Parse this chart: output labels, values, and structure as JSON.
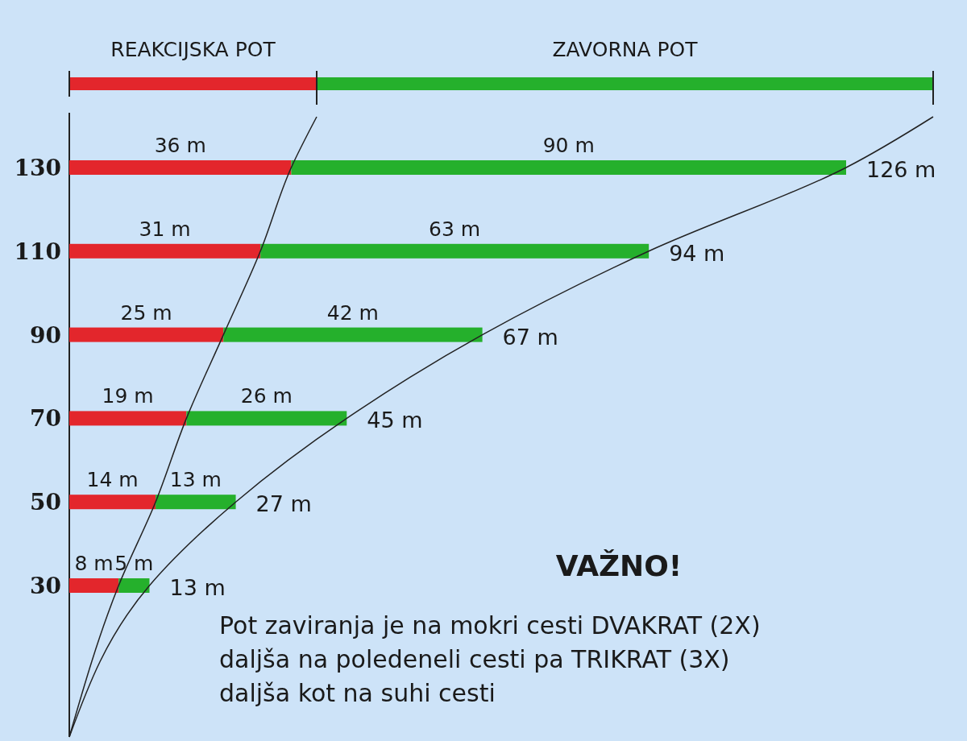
{
  "chart_data": {
    "type": "bar",
    "orientation": "horizontal",
    "stacked": true,
    "legend": "top",
    "categories": [
      "130",
      "110",
      "90",
      "70",
      "50",
      "30"
    ],
    "series": [
      {
        "name": "REAKCIJSKA POT",
        "color": "#e3262c",
        "values": [
          36,
          31,
          25,
          19,
          14,
          8
        ],
        "value_labels": [
          "36 m",
          "31 m",
          "25 m",
          "19 m",
          "14 m",
          "8 m"
        ]
      },
      {
        "name": "ZAVORNA POT",
        "color": "#25b02c",
        "values": [
          90,
          63,
          42,
          26,
          13,
          5
        ],
        "value_labels": [
          "90 m",
          "63 m",
          "42 m",
          "26 m",
          "13 m",
          "5 m"
        ]
      },
      {
        "type": "line",
        "color": "#222222",
        "values": [
          36,
          31,
          25,
          19,
          14,
          8
        ]
      },
      {
        "type": "line",
        "color": "#222222",
        "values": [
          126,
          94,
          67,
          45,
          27,
          13
        ]
      }
    ],
    "totals": [
      "126 m",
      "94 m",
      "67 m",
      "45 m",
      "27 m",
      "13 m"
    ],
    "annotations": [
      "VAŽNO!",
      "Pot zaviranja je na mokri cesti DVAKRAT (2X) daljša na poledeneli cesti pa TRIKRAT (3X) daljša kot na suhi cesti"
    ]
  }
}
